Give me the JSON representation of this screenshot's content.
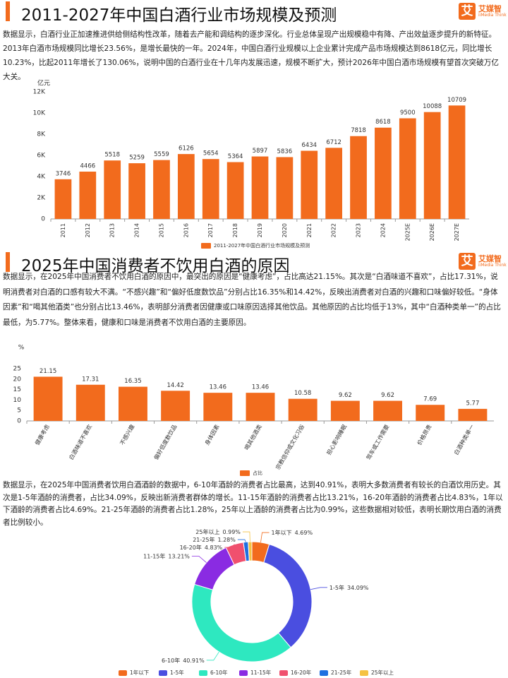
{
  "header": {
    "logo_icon": "艾",
    "logo_name": "艾媒智",
    "logo_sub": "iiMedia Think"
  },
  "sections": [
    {
      "title": "2011-2027年中国白酒行业市场规模及预测",
      "text": "数据显示，白酒行业正加速推进供给侧结构性改革，随着去产能和调结构的逐步深化。行业总体呈现产出规模稳中有降、产出效益逐步提升的新特征。2013年白酒市场规模同比增长23.56%，是增长最快的一年。2024年，中国白酒行业规模以上企业累计完成产品市场规模达到8618亿元，同比增长10.23%，比起2011年增长了130.06%，说明中国的白酒行业在十几年内发展迅速，规模不断扩大，预计2026年中国白酒市场规模有望首次突破万亿大关。"
    },
    {
      "title": "2025年中国消费者不饮用白酒的原因",
      "text": "数据显示，在2025年中国消费者不饮用白酒的原因中，最突出的原因是“健康考虑”，占比高达21.15%。其次是“白酒味道不喜欢”，占比17.31%，说明消费者对白酒的口感有较大不满。“不感兴趣”和“偏好低度数饮品”分别占比16.35%和14.42%，反映出消费者对白酒的兴趣和口味偏好较低。“身体因素”和“喝其他酒类”也分别占比13.46%，表明部分消费者因健康或口味原因选择其他饮品。其他原因的占比均低于13%，其中“白酒种类单一”的占比最低，为5.77%。整体来看，健康和口味是消费者不饮用白酒的主要原因。"
    },
    {
      "text": "数据显示，在2025年中国消费者饮用白酒酒龄的数据中，6-10年酒龄的消费者占比最高，达到40.91%，表明大多数消费者有较长的白酒饮用历史。其次是1-5年酒龄的消费者，占比34.09%，反映出新消费者群体的增长。11-15年酒龄的消费者占比13.21%，16-20年酒龄的消费者占比4.83%，1年以下酒龄的消费者占比4.69%。21-25年酒龄的消费者占比1.28%，25年以上酒龄的消费者占比为0.99%，这些数据相对较低，表明长期饮用白酒的消费者比例较小。"
    }
  ],
  "chart_data": [
    {
      "type": "bar",
      "y_label": "亿元",
      "categories": [
        "2011",
        "2012",
        "2013",
        "2014",
        "2015",
        "2016",
        "2017",
        "2018",
        "2019",
        "2020",
        "2021",
        "2022",
        "2023",
        "2024",
        "2025E",
        "2026E",
        "2027E"
      ],
      "series": [
        {
          "name": "2011-2027年中国白酒行业市场规模及预测",
          "color": "#f26b1d",
          "values": [
            3746,
            4466,
            5518,
            5259,
            5559,
            6126,
            5654,
            5364,
            5897,
            5836,
            6434,
            6712,
            7818,
            8618,
            9500,
            10088,
            10709
          ]
        }
      ],
      "ylim": [
        0,
        12000
      ],
      "yticks": [
        0,
        {
          "value": 2000,
          "label": "2K"
        },
        {
          "value": 4000,
          "label": "4K"
        },
        {
          "value": 6000,
          "label": "6K"
        },
        {
          "value": 8000,
          "label": "8K"
        },
        {
          "value": 10000,
          "label": "10K"
        },
        {
          "value": 12000,
          "label": "12K"
        }
      ],
      "grid": false
    },
    {
      "type": "bar",
      "y_label": "%",
      "categories": [
        "健康考虑",
        "白酒味道不喜欢",
        "不感兴趣",
        "偏好低度数饮品",
        "身体因素",
        "喝其他酒类",
        "宗教信仰或文化习俗",
        "担心影响睡眠",
        "驾车或工作需要",
        "价格昂贵",
        "白酒种类单一"
      ],
      "series": [
        {
          "name": "占比",
          "color": "#f26b1d",
          "values": [
            21.15,
            17.31,
            16.35,
            14.42,
            13.46,
            13.46,
            10.58,
            9.62,
            9.62,
            7.69,
            5.77
          ]
        }
      ],
      "ylim": [
        0,
        25
      ],
      "yticks": [
        0,
        5,
        10,
        15,
        20,
        25
      ],
      "grid": false
    },
    {
      "type": "donut",
      "categories": [
        "1年以下",
        "1-5年",
        "6-10年",
        "11-15年",
        "16-20年",
        "21-25年",
        "25年以上"
      ],
      "values": [
        4.69,
        34.09,
        40.91,
        13.21,
        4.83,
        1.28,
        0.99
      ],
      "value_labels": [
        "4.69%",
        "34.09%",
        "40.91%",
        "13.21%",
        "4.83%",
        "1.28%",
        "0.99%"
      ],
      "colors": [
        "#f26b1d",
        "#4a4ee0",
        "#2ee8c0",
        "#8a2be2",
        "#f0506e",
        "#1f6fe0",
        "#f5c242"
      ]
    }
  ]
}
